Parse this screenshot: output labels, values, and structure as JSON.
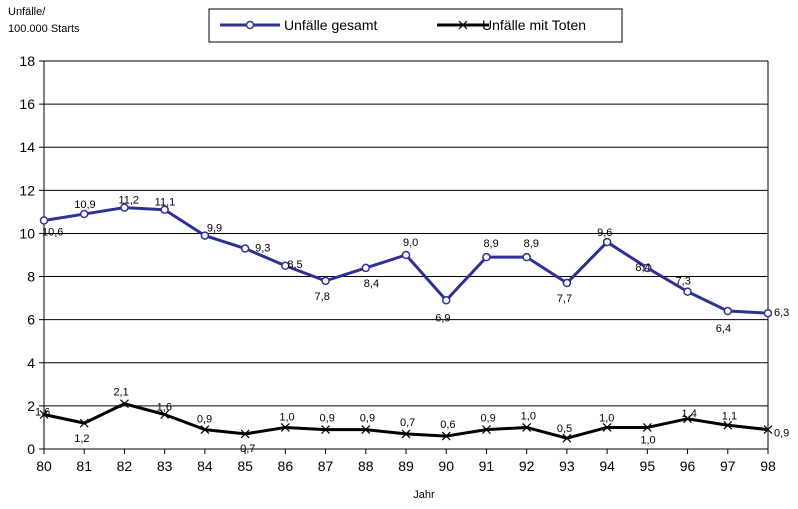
{
  "chart_data": {
    "type": "line",
    "ylabel": "Unfälle/\n100.000 Starts",
    "xlabel": "Jahr",
    "x": [
      "80",
      "81",
      "82",
      "83",
      "84",
      "85",
      "86",
      "87",
      "88",
      "89",
      "90",
      "91",
      "92",
      "93",
      "94",
      "95",
      "96",
      "97",
      "98"
    ],
    "ylim": [
      0,
      18
    ],
    "yticks": [
      0,
      2,
      4,
      6,
      8,
      10,
      12,
      14,
      16,
      18
    ],
    "grid": "horizontal",
    "legend_position": "top",
    "series": [
      {
        "name": "Unfälle gesamt",
        "color": "#2e3192",
        "marker": "circle",
        "values": [
          10.6,
          10.9,
          11.2,
          11.1,
          9.9,
          9.3,
          8.5,
          7.8,
          8.4,
          9.0,
          6.9,
          8.9,
          8.9,
          7.7,
          9.6,
          8.4,
          7.3,
          6.4,
          6.3
        ],
        "labels": [
          "10,6",
          "10,9",
          "11,2",
          "11,1",
          "9,9",
          "9,3",
          "8,5",
          "7,8",
          "8,4",
          "9,0",
          "6,9",
          "8,9",
          "8,9",
          "7,7",
          "9,6",
          "8,4",
          "7,3",
          "6,4",
          "6,3"
        ]
      },
      {
        "name": "Unfälle mit Toten",
        "color": "#000000",
        "marker": "x",
        "values": [
          1.6,
          1.2,
          2.1,
          1.6,
          0.9,
          0.7,
          1.0,
          0.9,
          0.9,
          0.7,
          0.6,
          0.9,
          1.0,
          0.5,
          1.0,
          1.0,
          1.4,
          1.1,
          0.9
        ],
        "labels": [
          "1,6",
          "1,2",
          "2,1",
          "1,6",
          "0,9",
          "0,7",
          "1,0",
          "0,9",
          "0,9",
          "0,7",
          "0,6",
          "0,9",
          "1,0",
          "0,5",
          "1,0",
          "1,0",
          "1,4",
          "1,1",
          "0,9"
        ]
      }
    ]
  }
}
